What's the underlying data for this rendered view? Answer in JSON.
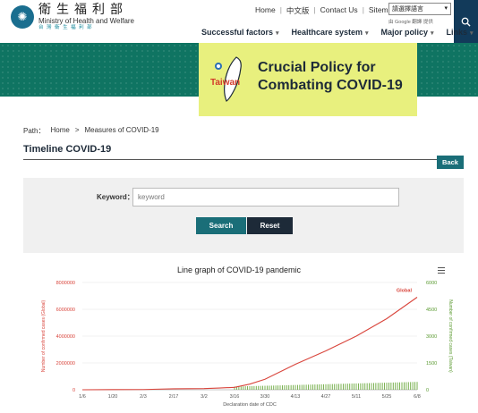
{
  "header": {
    "logo_zh": "衛生福利部",
    "logo_en": "Ministry of Health and Welfare",
    "logo_sub": "台 灣 衛 生 福 利 部",
    "topnav": [
      "Home",
      "中文版",
      "Contact Us",
      "Sitemap"
    ],
    "language_select": "請選擇語言",
    "google_badge": "由 Google 翻譯 提供",
    "mainnav": [
      "Successful factors",
      "Healthcare system",
      "Major policy",
      "Links"
    ]
  },
  "banner": {
    "badge_text": "Taiwan",
    "title_line1": "Crucial Policy for",
    "title_line2": "Combating COVID-19"
  },
  "breadcrumb": {
    "path_label": "Path：",
    "items": [
      "Home",
      ">",
      "Measures of COVID-19"
    ]
  },
  "page": {
    "title": "Timeline COVID-19",
    "back_label": "Back"
  },
  "search": {
    "keyword_label": "Keyword：",
    "placeholder": "keyword",
    "search_label": "Search",
    "reset_label": "Reset"
  },
  "colors": {
    "accent_teal": "#1a6e78",
    "dark_navy": "#1d2a38",
    "banner_green": "#0f7462",
    "global_line": "#d9453c",
    "taiwan_bars": "#6aa83c"
  },
  "chart_data": {
    "type": "line",
    "title": "Line graph of COVID-19 pandemic",
    "xlabel": "Declaration date of CDC",
    "ylabel_left": "Number of confirmed cases (Global)",
    "ylabel_right": "Number of confirmed cases (Taiwan)",
    "x_ticks": [
      "1/6",
      "1/20",
      "2/3",
      "2/17",
      "3/2",
      "3/16",
      "3/30",
      "4/13",
      "4/27",
      "5/11",
      "5/25",
      "6/8"
    ],
    "left_ticks": [
      0,
      2000000,
      4000000,
      6000000,
      8000000
    ],
    "right_ticks": [
      0,
      1500,
      3000,
      4500,
      6000
    ],
    "ylim_left": [
      0,
      8000000
    ],
    "ylim_right": [
      0,
      6000
    ],
    "series": [
      {
        "name": "Global",
        "axis": "left",
        "x": [
          0,
          14,
          28,
          42,
          56,
          63,
          70,
          77,
          84,
          98,
          112,
          126,
          140,
          154
        ],
        "values": [
          0,
          10000,
          17000,
          73000,
          89000,
          130000,
          180000,
          420000,
          780000,
          1900000,
          2900000,
          4000000,
          5300000,
          6900000
        ]
      },
      {
        "name": "Taiwan",
        "axis": "right",
        "type": "bar",
        "x_start": 70,
        "x_end": 154,
        "value_start": 180,
        "value_end": 440
      }
    ]
  }
}
